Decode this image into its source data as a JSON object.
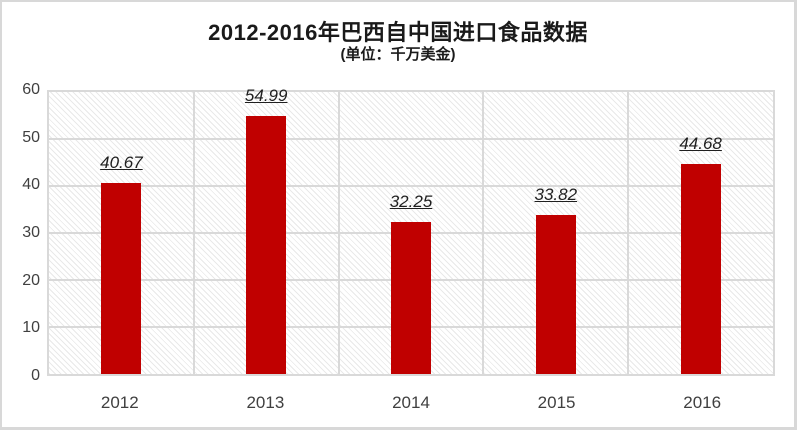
{
  "chart_data": {
    "type": "bar",
    "title": "2012-2016年巴西自中国进口食品数据",
    "subtitle": "(单位：千万美金)",
    "categories": [
      "2012",
      "2013",
      "2014",
      "2015",
      "2016"
    ],
    "values": [
      40.67,
      54.99,
      32.25,
      33.82,
      44.68
    ],
    "data_labels": [
      "40.67",
      "54.99",
      "32.25",
      "33.82",
      "44.68"
    ],
    "xlabel": "",
    "ylabel": "",
    "ylim": [
      0,
      60
    ],
    "ytick_step": 10,
    "yticks": [
      0,
      10,
      20,
      30,
      40,
      50,
      60
    ],
    "legend": "none",
    "grid": true,
    "plot_background": "diagonal-hatch",
    "colors": {
      "bar": "#c00000",
      "gridline": "#d9d9d9",
      "plot_border": "#d9d9d9",
      "hatch_line": "#e9e9e9",
      "axis_text": "#404040",
      "title_text": "#1a1a1a",
      "data_label_text": "#1f1f1f",
      "frame_border": "#d8d8d8"
    }
  }
}
